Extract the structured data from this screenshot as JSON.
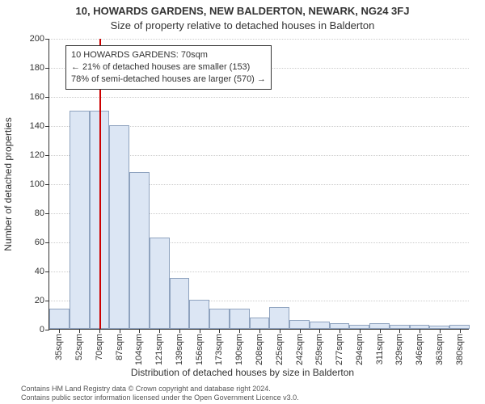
{
  "title": "10, HOWARDS GARDENS, NEW BALDERTON, NEWARK, NG24 3FJ",
  "subtitle": "Size of property relative to detached houses in Balderton",
  "chart": {
    "type": "histogram",
    "y_label": "Number of detached properties",
    "x_label": "Distribution of detached houses by size in Balderton",
    "ylim": [
      0,
      200
    ],
    "ytick_step": 20,
    "x_ticks": [
      "35sqm",
      "52sqm",
      "70sqm",
      "87sqm",
      "104sqm",
      "121sqm",
      "139sqm",
      "156sqm",
      "173sqm",
      "190sqm",
      "208sqm",
      "225sqm",
      "242sqm",
      "259sqm",
      "277sqm",
      "294sqm",
      "311sqm",
      "329sqm",
      "346sqm",
      "363sqm",
      "380sqm"
    ],
    "values": [
      14,
      150,
      150,
      140,
      108,
      63,
      35,
      20,
      14,
      14,
      8,
      15,
      6,
      5,
      4,
      3,
      4,
      3,
      3,
      2,
      3
    ],
    "bar_fill": "#dce6f4",
    "bar_stroke": "#8fa3bf",
    "background": "#ffffff",
    "grid_color": "#cccccc",
    "axis_color": "#333333",
    "label_fontsize": 12,
    "tick_fontsize": 11,
    "bar_width_ratio": 1.0
  },
  "marker": {
    "x_index": 2,
    "color": "#cc0000"
  },
  "info_box": {
    "line1": "10 HOWARDS GARDENS: 70sqm",
    "line2": "← 21% of detached houses are smaller (153)",
    "line3": "78% of semi-detached houses are larger (570) →",
    "border_color": "#333333",
    "background": "#ffffff"
  },
  "footer": {
    "line1": "Contains HM Land Registry data © Crown copyright and database right 2024.",
    "line2": "Contains public sector information licensed under the Open Government Licence v3.0."
  }
}
